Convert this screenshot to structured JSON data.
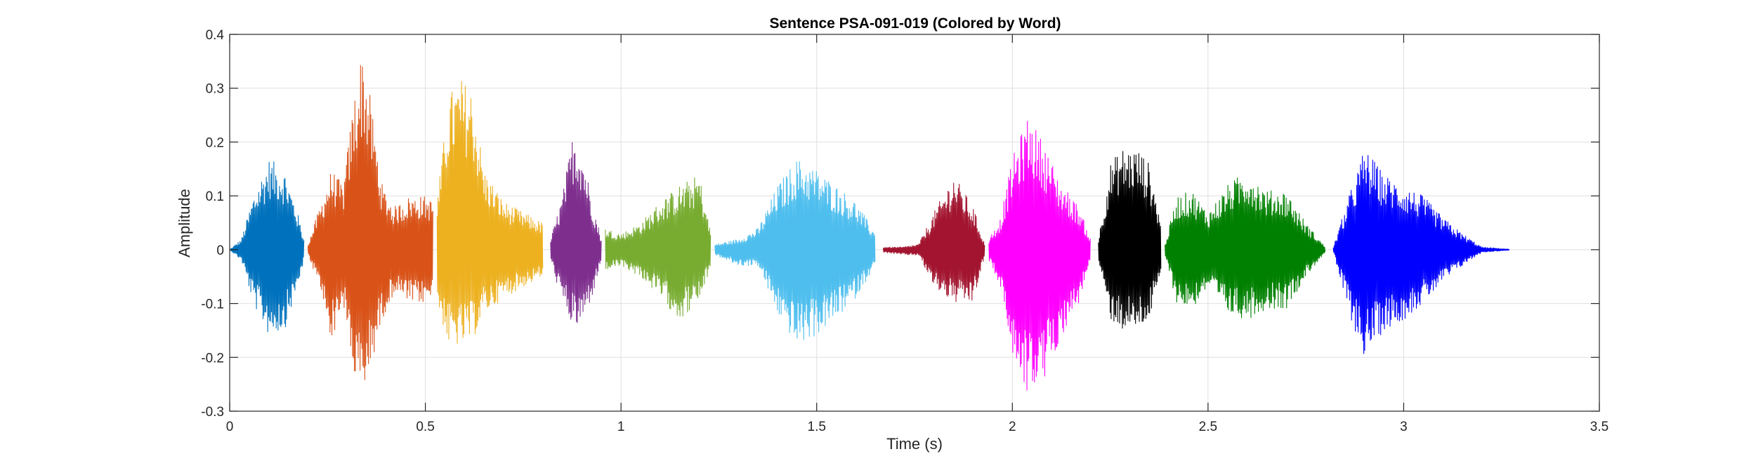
{
  "chart_data": {
    "type": "line",
    "title": "Sentence PSA-091-019 (Colored by Word)",
    "xlabel": "Time (s)",
    "ylabel": "Amplitude",
    "xlim": [
      0,
      3.5
    ],
    "ylim": [
      -0.3,
      0.4
    ],
    "grid": true,
    "x_ticks": [
      0,
      0.5,
      1,
      1.5,
      2,
      2.5,
      3,
      3.5
    ],
    "x_tick_labels": [
      "0",
      "0.5",
      "1",
      "1.5",
      "2",
      "2.5",
      "3",
      "3.5"
    ],
    "y_ticks": [
      -0.3,
      -0.2,
      -0.1,
      0,
      0.1,
      0.2,
      0.3,
      0.4
    ],
    "y_tick_labels": [
      "-0.3",
      "-0.2",
      "-0.1",
      "0",
      "0.1",
      "0.2",
      "0.3",
      "0.4"
    ],
    "series": [
      {
        "color": "#0072BD",
        "x_range": [
          0.0,
          0.19
        ],
        "envelope": [
          [
            0.0,
            0.0,
            0.0
          ],
          [
            0.03,
            0.02,
            -0.02
          ],
          [
            0.06,
            0.1,
            -0.1
          ],
          [
            0.1,
            0.17,
            -0.16
          ],
          [
            0.14,
            0.15,
            -0.15
          ],
          [
            0.17,
            0.08,
            -0.08
          ],
          [
            0.19,
            0.02,
            -0.02
          ]
        ]
      },
      {
        "color": "#D95319",
        "x_range": [
          0.2,
          0.52
        ],
        "envelope": [
          [
            0.2,
            0.01,
            -0.01
          ],
          [
            0.23,
            0.08,
            -0.07
          ],
          [
            0.26,
            0.15,
            -0.17
          ],
          [
            0.29,
            0.12,
            -0.1
          ],
          [
            0.32,
            0.3,
            -0.25
          ],
          [
            0.34,
            0.38,
            -0.28
          ],
          [
            0.36,
            0.28,
            -0.22
          ],
          [
            0.39,
            0.12,
            -0.13
          ],
          [
            0.42,
            0.08,
            -0.08
          ],
          [
            0.46,
            0.1,
            -0.1
          ],
          [
            0.5,
            0.1,
            -0.1
          ],
          [
            0.52,
            0.09,
            -0.09
          ]
        ]
      },
      {
        "color": "#EDB120",
        "x_range": [
          0.53,
          0.8
        ],
        "envelope": [
          [
            0.53,
            0.09,
            -0.1
          ],
          [
            0.56,
            0.29,
            -0.18
          ],
          [
            0.59,
            0.32,
            -0.18
          ],
          [
            0.62,
            0.3,
            -0.17
          ],
          [
            0.65,
            0.15,
            -0.12
          ],
          [
            0.7,
            0.09,
            -0.09
          ],
          [
            0.75,
            0.07,
            -0.07
          ],
          [
            0.8,
            0.05,
            -0.05
          ]
        ]
      },
      {
        "color": "#7E2F8E",
        "x_range": [
          0.82,
          0.95
        ],
        "envelope": [
          [
            0.82,
            0.02,
            -0.02
          ],
          [
            0.85,
            0.1,
            -0.1
          ],
          [
            0.88,
            0.23,
            -0.15
          ],
          [
            0.9,
            0.19,
            -0.14
          ],
          [
            0.93,
            0.08,
            -0.08
          ],
          [
            0.95,
            0.02,
            -0.02
          ]
        ]
      },
      {
        "color": "#77AC30",
        "x_range": [
          0.96,
          1.23
        ],
        "envelope": [
          [
            0.96,
            0.04,
            -0.04
          ],
          [
            1.0,
            0.03,
            -0.03
          ],
          [
            1.05,
            0.05,
            -0.05
          ],
          [
            1.1,
            0.09,
            -0.09
          ],
          [
            1.15,
            0.12,
            -0.13
          ],
          [
            1.2,
            0.14,
            -0.1
          ],
          [
            1.23,
            0.03,
            -0.03
          ]
        ]
      },
      {
        "color": "#4DBEEE",
        "x_range": [
          1.24,
          1.65
        ],
        "envelope": [
          [
            1.24,
            0.01,
            -0.01
          ],
          [
            1.3,
            0.02,
            -0.03
          ],
          [
            1.35,
            0.04,
            -0.03
          ],
          [
            1.4,
            0.12,
            -0.12
          ],
          [
            1.45,
            0.17,
            -0.18
          ],
          [
            1.5,
            0.15,
            -0.16
          ],
          [
            1.55,
            0.12,
            -0.13
          ],
          [
            1.6,
            0.09,
            -0.09
          ],
          [
            1.65,
            0.03,
            -0.03
          ]
        ]
      },
      {
        "color": "#A2142F",
        "x_range": [
          1.67,
          1.93
        ],
        "envelope": [
          [
            1.67,
            0.005,
            -0.005
          ],
          [
            1.72,
            0.005,
            -0.01
          ],
          [
            1.76,
            0.01,
            -0.01
          ],
          [
            1.8,
            0.07,
            -0.07
          ],
          [
            1.85,
            0.14,
            -0.1
          ],
          [
            1.9,
            0.08,
            -0.1
          ],
          [
            1.93,
            0.01,
            -0.01
          ]
        ]
      },
      {
        "color": "#FF00FF",
        "x_range": [
          1.94,
          2.2
        ],
        "envelope": [
          [
            1.94,
            0.02,
            -0.02
          ],
          [
            1.97,
            0.06,
            -0.07
          ],
          [
            2.0,
            0.17,
            -0.2
          ],
          [
            2.04,
            0.25,
            -0.27
          ],
          [
            2.08,
            0.2,
            -0.25
          ],
          [
            2.12,
            0.13,
            -0.17
          ],
          [
            2.17,
            0.08,
            -0.1
          ],
          [
            2.2,
            0.02,
            -0.02
          ]
        ]
      },
      {
        "color": "#000000",
        "x_range": [
          2.22,
          2.38
        ],
        "envelope": [
          [
            2.22,
            0.02,
            -0.02
          ],
          [
            2.25,
            0.16,
            -0.13
          ],
          [
            2.28,
            0.19,
            -0.15
          ],
          [
            2.32,
            0.19,
            -0.15
          ],
          [
            2.35,
            0.16,
            -0.13
          ],
          [
            2.38,
            0.05,
            -0.05
          ]
        ]
      },
      {
        "color": "#008000",
        "x_range": [
          2.39,
          2.8
        ],
        "envelope": [
          [
            2.39,
            0.01,
            -0.01
          ],
          [
            2.42,
            0.1,
            -0.1
          ],
          [
            2.46,
            0.11,
            -0.11
          ],
          [
            2.5,
            0.07,
            -0.07
          ],
          [
            2.55,
            0.12,
            -0.12
          ],
          [
            2.6,
            0.15,
            -0.13
          ],
          [
            2.65,
            0.11,
            -0.11
          ],
          [
            2.7,
            0.11,
            -0.11
          ],
          [
            2.75,
            0.05,
            -0.05
          ],
          [
            2.8,
            0.005,
            -0.005
          ]
        ]
      },
      {
        "color": "#0000FF",
        "x_range": [
          2.82,
          3.27
        ],
        "envelope": [
          [
            2.82,
            0.005,
            -0.005
          ],
          [
            2.86,
            0.1,
            -0.12
          ],
          [
            2.9,
            0.19,
            -0.2
          ],
          [
            2.95,
            0.14,
            -0.15
          ],
          [
            3.0,
            0.12,
            -0.13
          ],
          [
            3.05,
            0.1,
            -0.1
          ],
          [
            3.1,
            0.06,
            -0.06
          ],
          [
            3.15,
            0.03,
            -0.03
          ],
          [
            3.2,
            0.005,
            -0.005
          ],
          [
            3.27,
            0.001,
            -0.001
          ]
        ]
      }
    ]
  }
}
